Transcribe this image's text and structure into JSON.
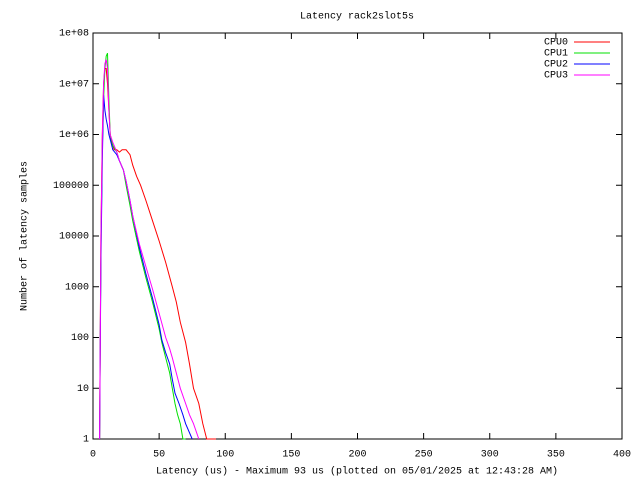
{
  "chart_data": {
    "type": "line",
    "title": "Latency rack2slot5s",
    "x_label": "Latency (us) - Maximum 93 us (plotted on 05/01/2025 at 12:43:28 AM)",
    "y_label": "Number of latency samples",
    "log_y": true,
    "legend": "top-right",
    "xlim": [
      0,
      400
    ],
    "xticks": [
      0,
      50,
      100,
      150,
      200,
      250,
      300,
      350,
      400
    ],
    "ylim": [
      1,
      100000000
    ],
    "yticks": [
      {
        "value": 100000000,
        "label": "1e+08"
      },
      {
        "value": 10000000,
        "label": "1e+07"
      },
      {
        "value": 1000000,
        "label": "1e+06"
      },
      100000,
      10000,
      1000,
      100,
      10,
      1
    ],
    "series": [
      {
        "name": "CPU0",
        "color": "#ff0000",
        "x": [
          5,
          6,
          7,
          8,
          9,
          10,
          11,
          12,
          13,
          14,
          15,
          16,
          18,
          20,
          22,
          25,
          28,
          30,
          33,
          36,
          40,
          45,
          50,
          55,
          60,
          63,
          66,
          70,
          73,
          76,
          80,
          83,
          86,
          93
        ],
        "values": [
          1,
          10000,
          1000000,
          10000000,
          20000000,
          20000000,
          10000000,
          3000000,
          1000000,
          700000,
          600000,
          500000,
          500000,
          450000,
          500000,
          500000,
          400000,
          250000,
          150000,
          100000,
          50000,
          20000,
          8000,
          3000,
          1000,
          500,
          200,
          80,
          30,
          10,
          5,
          2,
          1,
          1
        ]
      },
      {
        "name": "CPU1",
        "color": "#00e000",
        "x": [
          5,
          6,
          7,
          8,
          9,
          10,
          11,
          12,
          13,
          15,
          18,
          20,
          23,
          25,
          28,
          30,
          35,
          40,
          45,
          50,
          52,
          55,
          58,
          60,
          62,
          64,
          66,
          68,
          70
        ],
        "values": [
          1,
          5000,
          500000,
          5000000,
          20000000,
          35000000,
          40000000,
          5000000,
          1000000,
          600000,
          450000,
          300000,
          200000,
          100000,
          40000,
          20000,
          5000,
          1500,
          500,
          150,
          80,
          40,
          20,
          10,
          5,
          3,
          2,
          1,
          1
        ]
      },
      {
        "name": "CPU2",
        "color": "#0000ff",
        "x": [
          5,
          6,
          7,
          8,
          9,
          10,
          11,
          12,
          13,
          15,
          18,
          20,
          23,
          25,
          28,
          30,
          35,
          40,
          45,
          50,
          52,
          55,
          58,
          60,
          62,
          65,
          68,
          70,
          75
        ],
        "values": [
          1,
          3000,
          300000,
          6000000,
          3000000,
          2000000,
          1500000,
          1000000,
          800000,
          500000,
          400000,
          300000,
          200000,
          120000,
          50000,
          25000,
          6000,
          1800,
          600,
          180,
          90,
          50,
          30,
          15,
          8,
          5,
          3,
          2,
          1
        ]
      },
      {
        "name": "CPU3",
        "color": "#ff00ff",
        "x": [
          5,
          6,
          7,
          8,
          9,
          10,
          11,
          12,
          13,
          15,
          18,
          20,
          23,
          25,
          28,
          30,
          35,
          40,
          45,
          50,
          55,
          58,
          60,
          63,
          66,
          70,
          73,
          76,
          80
        ],
        "values": [
          1,
          8000,
          800000,
          10000000,
          25000000,
          30000000,
          20000000,
          3000000,
          1000000,
          700000,
          450000,
          300000,
          200000,
          120000,
          50000,
          25000,
          7000,
          2500,
          900,
          300,
          100,
          60,
          40,
          20,
          10,
          5,
          3,
          2,
          1
        ]
      }
    ]
  }
}
